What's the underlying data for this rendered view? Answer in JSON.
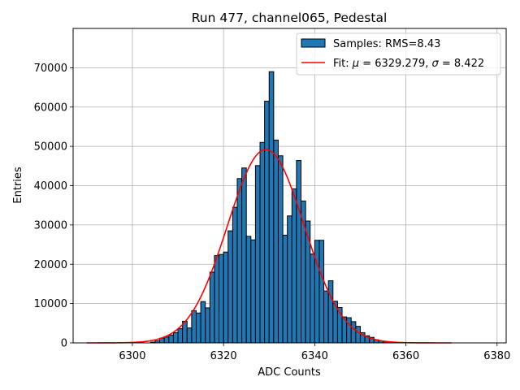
{
  "chart_data": {
    "type": "bar",
    "title": "Run 477, channel065, Pedestal",
    "xlabel": "ADC Counts",
    "ylabel": "Entries",
    "xlim": [
      6287,
      6382
    ],
    "ylim": [
      0,
      80000
    ],
    "xticks": [
      6300,
      6320,
      6340,
      6360,
      6380
    ],
    "yticks": [
      0,
      10000,
      20000,
      30000,
      40000,
      50000,
      60000,
      70000
    ],
    "grid": true,
    "legend_position": "top-right",
    "colors": {
      "bars": "#1f77b4",
      "bar_edge": "#000000",
      "fit": "#ff0000",
      "grid": "#b0b0b0"
    },
    "histogram": {
      "name": "Samples: RMS=8.43",
      "bin_width": 1,
      "bins": [
        [
          6304,
          200
        ],
        [
          6305,
          500
        ],
        [
          6306,
          1200
        ],
        [
          6307,
          1500
        ],
        [
          6308,
          2000
        ],
        [
          6309,
          2600
        ],
        [
          6310,
          3600
        ],
        [
          6311,
          5500
        ],
        [
          6312,
          3800
        ],
        [
          6313,
          8200
        ],
        [
          6314,
          7600
        ],
        [
          6315,
          10500
        ],
        [
          6316,
          8900
        ],
        [
          6317,
          18000
        ],
        [
          6318,
          22200
        ],
        [
          6319,
          22500
        ],
        [
          6320,
          23100
        ],
        [
          6321,
          28500
        ],
        [
          6322,
          34500
        ],
        [
          6323,
          41800
        ],
        [
          6324,
          44500
        ],
        [
          6325,
          27100
        ],
        [
          6326,
          26200
        ],
        [
          6327,
          45100
        ],
        [
          6328,
          51000
        ],
        [
          6329,
          61500
        ],
        [
          6330,
          69000
        ],
        [
          6331,
          51600
        ],
        [
          6332,
          47600
        ],
        [
          6333,
          27400
        ],
        [
          6334,
          32300
        ],
        [
          6335,
          39200
        ],
        [
          6336,
          46400
        ],
        [
          6337,
          36100
        ],
        [
          6338,
          31000
        ],
        [
          6339,
          22600
        ],
        [
          6340,
          26100
        ],
        [
          6341,
          26100
        ],
        [
          6342,
          13200
        ],
        [
          6343,
          15800
        ],
        [
          6344,
          10600
        ],
        [
          6345,
          9000
        ],
        [
          6346,
          6600
        ],
        [
          6347,
          6400
        ],
        [
          6348,
          5400
        ],
        [
          6349,
          4200
        ],
        [
          6350,
          2600
        ],
        [
          6351,
          1800
        ],
        [
          6352,
          1400
        ],
        [
          6353,
          800
        ],
        [
          6354,
          500
        ],
        [
          6355,
          300
        ],
        [
          6356,
          200
        ],
        [
          6357,
          120
        ]
      ]
    },
    "fit": {
      "name_prefix": "Fit: ",
      "mu_symbol": "μ",
      "mu_text": " = 6329.279, ",
      "sigma_symbol": "σ",
      "sigma_text": " = 8.422",
      "mu": 6329.279,
      "sigma": 8.422,
      "amplitude": 49200,
      "x_range": [
        6290,
        6370
      ]
    }
  }
}
